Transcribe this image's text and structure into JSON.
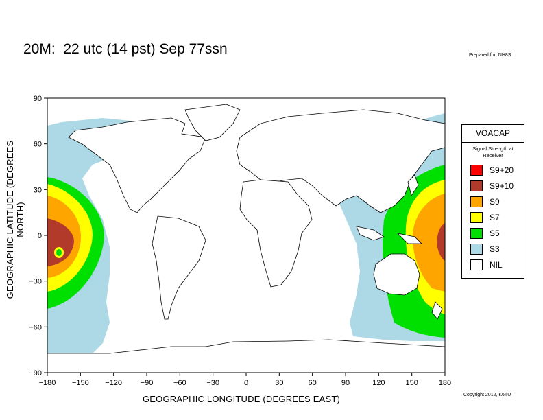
{
  "title": "20M:  22 utc (14 pst) Sep 77ssn",
  "prepared": "Prepared for: NH8S",
  "copyright": "Copyright 2012, K6TU",
  "axes": {
    "xlabel": "GEOGRAPHIC LONGITUDE (DEGREES EAST)",
    "ylabel": "GEOGRAPHIC LATITUDE (DEGREES NORTH)",
    "xticks": [
      "−180",
      "−150",
      "−120",
      "−90",
      "−60",
      "−30",
      "0",
      "30",
      "60",
      "90",
      "120",
      "150",
      "180"
    ],
    "yticks": [
      "90",
      "60",
      "30",
      "0",
      "−30",
      "−60",
      "−90"
    ]
  },
  "legend": {
    "title": "VOACAP",
    "subtitle": "Signal Strength at Receiver",
    "items": [
      {
        "label": "S9+20",
        "color": "#ff0000"
      },
      {
        "label": "S9+10",
        "color": "#b23a2a"
      },
      {
        "label": "S9",
        "color": "#ffa500"
      },
      {
        "label": "S7",
        "color": "#ffff00"
      },
      {
        "label": "S5",
        "color": "#00e000"
      },
      {
        "label": "S3",
        "color": "#add8e6"
      },
      {
        "label": "NIL",
        "color": "#ffffff"
      }
    ]
  },
  "transmitter": {
    "lon": -172,
    "lat": -12
  }
}
